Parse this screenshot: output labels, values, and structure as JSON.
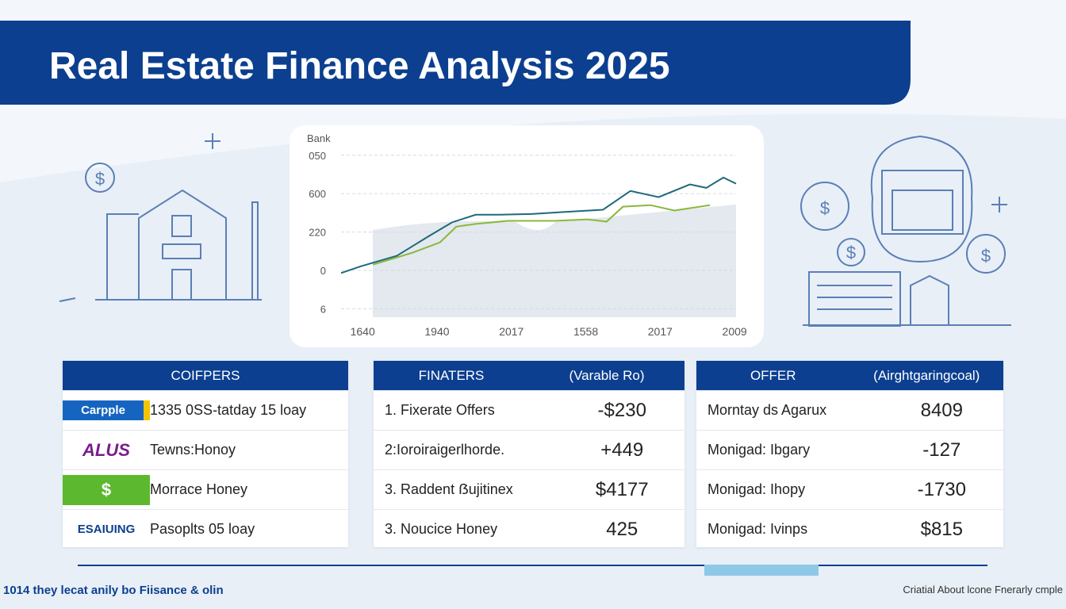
{
  "header": {
    "title": "Real Estate Finance Analysis 2025"
  },
  "chart": {
    "type": "line",
    "label": "Bank",
    "xlim": [
      -0.29,
      5.02
    ],
    "ylim": [
      -0.22,
      4.12
    ],
    "xticks": [
      {
        "value": 0,
        "label": "1640"
      },
      {
        "value": 1,
        "label": "1940"
      },
      {
        "value": 2,
        "label": "2017"
      },
      {
        "value": 3,
        "label": "1558"
      },
      {
        "value": 4,
        "label": "2017"
      },
      {
        "value": 5,
        "label": "2009"
      }
    ],
    "yticks": [
      {
        "value": 4,
        "label": "050"
      },
      {
        "value": 3,
        "label": "600"
      },
      {
        "value": 2,
        "label": "220"
      },
      {
        "value": 1,
        "label": "0"
      },
      {
        "value": 0,
        "label": "6"
      }
    ],
    "grid": true,
    "series": [
      {
        "color": "#1d6a7a",
        "x": [
          -0.29,
          -0.02,
          0.46,
          0.88,
          1.2,
          1.52,
          1.84,
          2.27,
          2.7,
          3.23,
          3.6,
          3.98,
          4.4,
          4.62,
          4.85,
          5.02
        ],
        "values": [
          0.93,
          1.11,
          1.38,
          1.88,
          2.25,
          2.45,
          2.45,
          2.47,
          2.52,
          2.58,
          3.07,
          2.91,
          3.24,
          3.15,
          3.42,
          3.26
        ]
      },
      {
        "color": "#8ab83a",
        "x": [
          0.14,
          0.67,
          1.04,
          1.26,
          1.52,
          1.95,
          2.59,
          3.02,
          3.28,
          3.5,
          3.87,
          4.19,
          4.67
        ],
        "values": [
          1.15,
          1.46,
          1.73,
          2.14,
          2.21,
          2.29,
          2.29,
          2.33,
          2.27,
          2.66,
          2.7,
          2.56,
          2.7
        ]
      }
    ]
  },
  "tables": [
    {
      "headers": [
        "COIFPERS"
      ],
      "rows": [
        [
          "Carpple",
          "1335 0SS-tatday 15 loay"
        ],
        [
          "ALUS",
          "Tewns:Honoy"
        ],
        [
          "$",
          "Morrace Honey"
        ],
        [
          "ESAIUING",
          "Pasoplts 05 loay"
        ]
      ]
    },
    {
      "headers": [
        "FINATERS",
        "(Varable Ro)"
      ],
      "rows": [
        [
          "1. Fixerate Offers",
          "-$230"
        ],
        [
          "2:Ioroiraigerlhorde.",
          "+449"
        ],
        [
          "3. Raddent ẞujitinex",
          "$4177"
        ],
        [
          "3. Noucice Honey",
          "425"
        ]
      ]
    },
    {
      "headers": [
        "OFFER",
        "(Airghtgaringcoal)"
      ],
      "rows": [
        [
          "Morntay ds Agarux",
          "8409"
        ],
        [
          "Monigad: Ibgary",
          "-127"
        ],
        [
          "Monigad: Ihopy",
          "-1730"
        ],
        [
          "Monigad: Ivinps",
          "$815"
        ]
      ]
    }
  ],
  "footer": {
    "left": "1014 they lecat anily bo Fiisance & olin",
    "right": "Criatial About lcone Fnerarly cmple"
  }
}
